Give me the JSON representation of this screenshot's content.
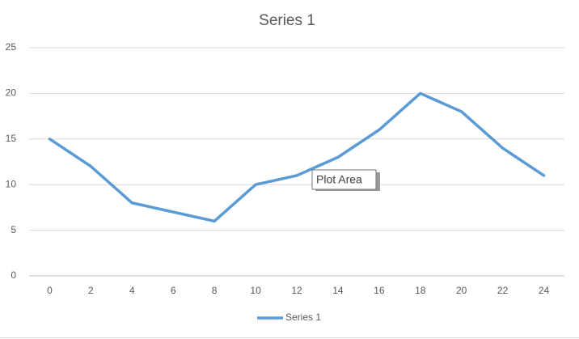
{
  "chart_data": {
    "type": "line",
    "title": "Series 1",
    "categories": [
      "0",
      "2",
      "4",
      "6",
      "8",
      "10",
      "12",
      "14",
      "16",
      "18",
      "20",
      "22",
      "24"
    ],
    "series": [
      {
        "name": "Series 1",
        "color": "#5b9bd5",
        "values": [
          15,
          12,
          8,
          7,
          6,
          10,
          11,
          13,
          16,
          20,
          18,
          14,
          11
        ]
      }
    ],
    "ylim": [
      0,
      25
    ],
    "yticks": [
      0,
      5,
      10,
      15,
      20,
      25
    ],
    "grid": true,
    "legend": "bottom",
    "annotation": "Plot Area"
  }
}
